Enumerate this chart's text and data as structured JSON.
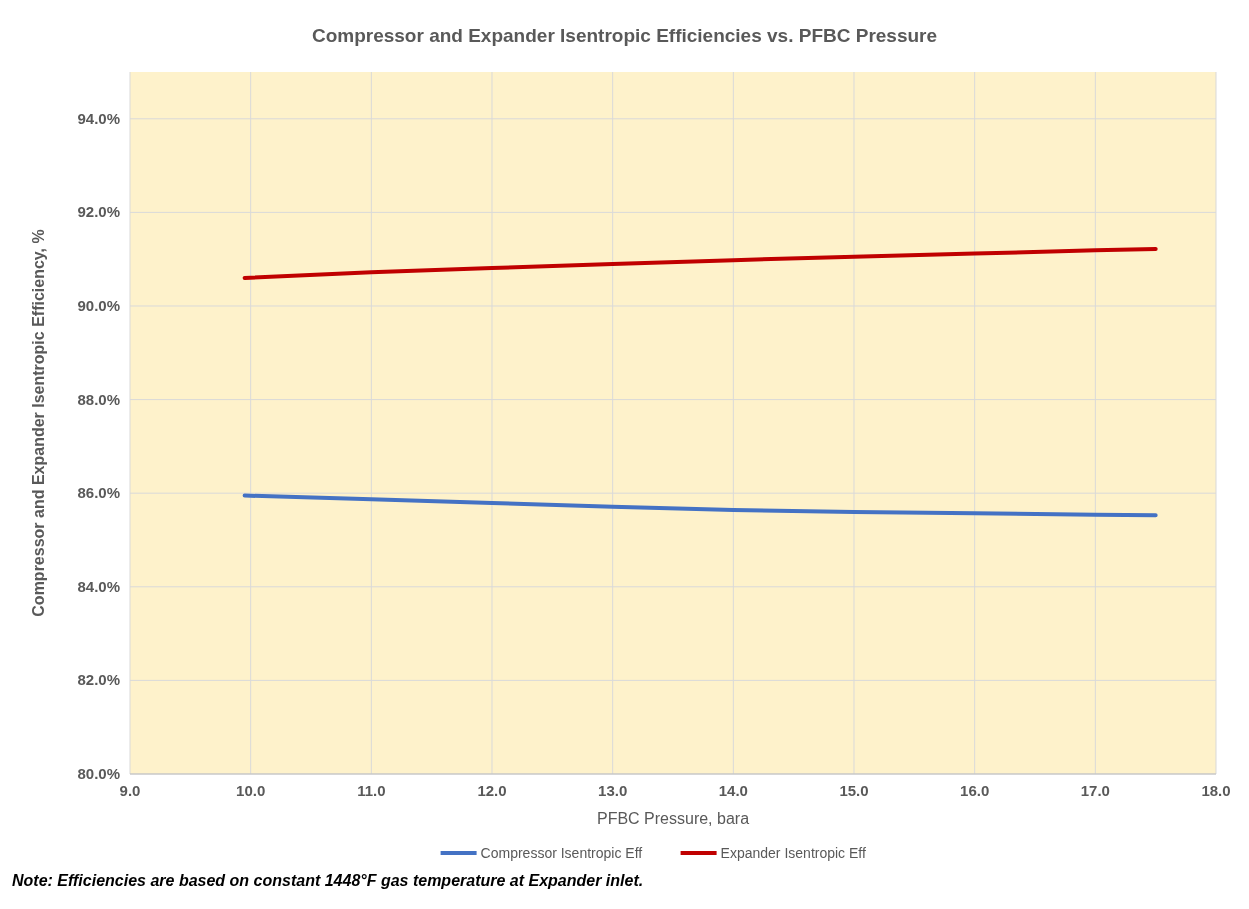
{
  "chart_data": {
    "type": "line",
    "title": "Compressor and Expander Isentropic Efficiencies vs. PFBC Pressure",
    "xlabel": "PFBC Pressure, bara",
    "ylabel": "Compressor and Expander Isentropic Efficiency, %",
    "x": [
      9.95,
      11,
      12,
      13,
      14,
      15,
      16,
      17,
      17.5
    ],
    "series": [
      {
        "name": "Compressor Isentropic Eff",
        "color": "#4472c4",
        "values": [
          85.95,
          85.87,
          85.79,
          85.71,
          85.64,
          85.6,
          85.57,
          85.54,
          85.53
        ]
      },
      {
        "name": "Expander Isentropic Eff",
        "color": "#c00000",
        "values": [
          90.6,
          90.72,
          90.81,
          90.9,
          90.98,
          91.05,
          91.12,
          91.19,
          91.22
        ]
      }
    ],
    "xlim": [
      9,
      18
    ],
    "xticks": [
      {
        "value": 9,
        "label": "9.0"
      },
      {
        "value": 10,
        "label": "10.0"
      },
      {
        "value": 11,
        "label": "11.0"
      },
      {
        "value": 12,
        "label": "12.0"
      },
      {
        "value": 13,
        "label": "13.0"
      },
      {
        "value": 14,
        "label": "14.0"
      },
      {
        "value": 15,
        "label": "15.0"
      },
      {
        "value": 16,
        "label": "16.0"
      },
      {
        "value": 17,
        "label": "17.0"
      },
      {
        "value": 18,
        "label": "18.0"
      }
    ],
    "ylim": [
      80,
      95
    ],
    "yticks": [
      {
        "value": 80,
        "label": "80.0%"
      },
      {
        "value": 82,
        "label": "82.0%"
      },
      {
        "value": 84,
        "label": "84.0%"
      },
      {
        "value": 86,
        "label": "86.0%"
      },
      {
        "value": 88,
        "label": "88.0%"
      },
      {
        "value": 90,
        "label": "90.0%"
      },
      {
        "value": 92,
        "label": "92.0%"
      },
      {
        "value": 94,
        "label": "94.0%"
      }
    ],
    "grid": true,
    "legend": "bottom",
    "marker": "none",
    "line_style": "solid",
    "annotations": [
      "Note: Efficiencies are based on constant 1448°F gas temperature at Expander inlet."
    ]
  }
}
